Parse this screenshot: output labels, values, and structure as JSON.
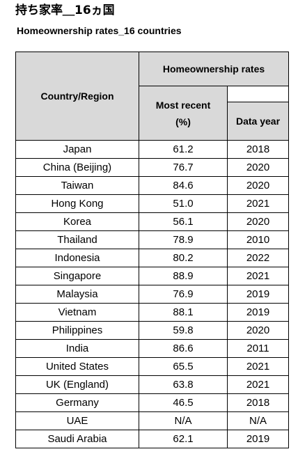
{
  "title_ja": "持ち家率＿16ヵ国",
  "title_en": "Homeownership rates_16 countries",
  "table": {
    "header": {
      "country": "Country/Region",
      "group": "Homeownership rates",
      "recent_line1": "Most recent",
      "recent_line2": "(%)",
      "year": "Data year"
    },
    "rows": [
      {
        "country": "Japan",
        "rate": "61.2",
        "year": "2018"
      },
      {
        "country": "China (Beijing)",
        "rate": "76.7",
        "year": "2020"
      },
      {
        "country": "Taiwan",
        "rate": "84.6",
        "year": "2020"
      },
      {
        "country": "Hong Kong",
        "rate": "51.0",
        "year": "2021"
      },
      {
        "country": "Korea",
        "rate": "56.1",
        "year": "2020"
      },
      {
        "country": "Thailand",
        "rate": "78.9",
        "year": "2010"
      },
      {
        "country": "Indonesia",
        "rate": "80.2",
        "year": "2022"
      },
      {
        "country": "Singapore",
        "rate": "88.9",
        "year": "2021"
      },
      {
        "country": "Malaysia",
        "rate": "76.9",
        "year": "2019"
      },
      {
        "country": "Vietnam",
        "rate": "88.1",
        "year": "2019"
      },
      {
        "country": "Philippines",
        "rate": "59.8",
        "year": "2020"
      },
      {
        "country": "India",
        "rate": "86.6",
        "year": "2011"
      },
      {
        "country": "United States",
        "rate": "65.5",
        "year": "2021"
      },
      {
        "country": "UK (England)",
        "rate": "63.8",
        "year": "2021"
      },
      {
        "country": "Germany",
        "rate": "46.5",
        "year": "2018"
      },
      {
        "country": "UAE",
        "rate": "N/A",
        "year": "N/A"
      },
      {
        "country": "Saudi Arabia",
        "rate": "62.1",
        "year": "2019"
      }
    ]
  }
}
